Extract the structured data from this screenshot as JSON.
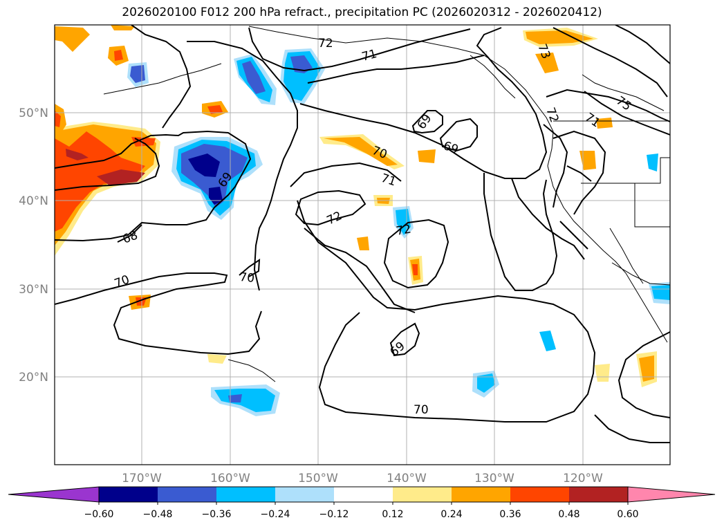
{
  "title": "2026020100 F012 200 hPa refract., precipitation PC (2026020312 - 2026020412)",
  "axes": {
    "lon_labels": [
      "170°W",
      "160°W",
      "150°W",
      "140°W",
      "130°W",
      "120°W"
    ],
    "lat_labels": [
      "50°N",
      "40°N",
      "30°N",
      "20°N"
    ]
  },
  "colorbar": {
    "labels": [
      "−0.60",
      "−0.48",
      "−0.36",
      "−0.24",
      "−0.12",
      "0.12",
      "0.24",
      "0.36",
      "0.48",
      "0.60"
    ],
    "colors": [
      "#9a35cf",
      "#00008b",
      "#3a5bd1",
      "#00bfff",
      "#aee0fb",
      "#ffffff",
      "#ffeb8a",
      "#ffa500",
      "#ff4500",
      "#b22222",
      "#ff86ad"
    ]
  },
  "contour_labels": [
    "72",
    "71",
    "73",
    "75",
    "69",
    "69",
    "70",
    "71",
    "72",
    "72",
    "69",
    "68",
    "70",
    "70",
    "69",
    "70",
    "72",
    "71"
  ],
  "colors": {
    "grid": "#b0b0b0",
    "contour": "#000000",
    "tick_text": "#808080"
  }
}
